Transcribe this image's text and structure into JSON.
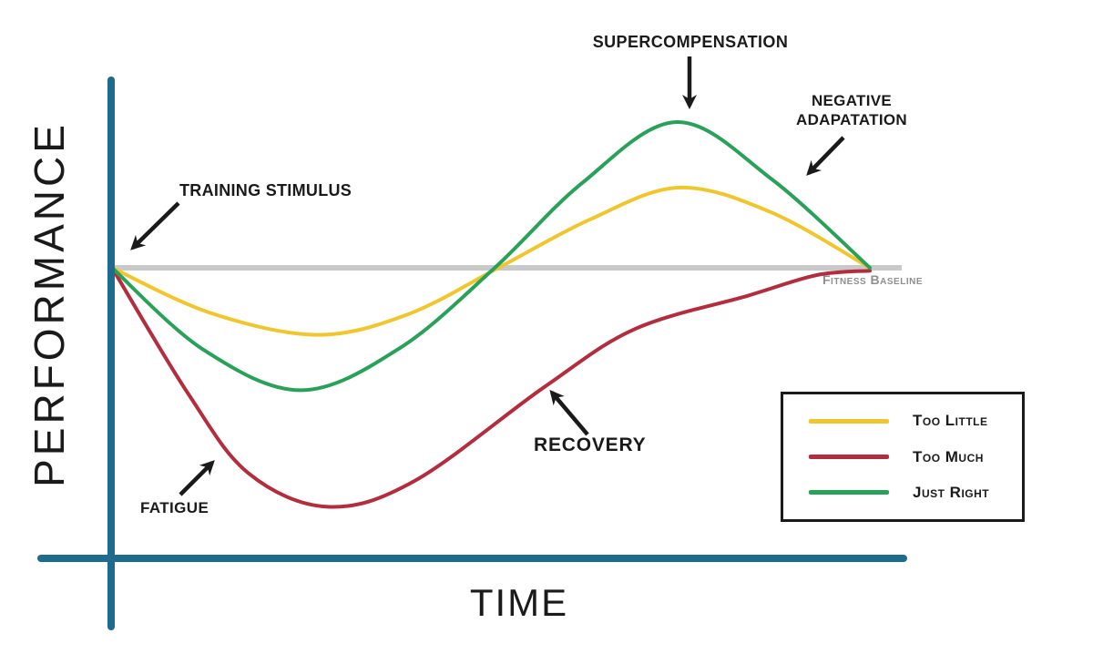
{
  "page": {
    "background": "#ffffff"
  },
  "colors": {
    "axis": "#1e6b8e",
    "baseline": "#c9c9c9",
    "arrow": "#1a1a1a",
    "label_text": "#1a1a1a",
    "baseline_text": "#8f8f8f"
  },
  "axes": {
    "x_label": "TIME",
    "y_label": "PERFORMANCE"
  },
  "annotations": {
    "training_stimulus": "TRAINING STIMULUS",
    "supercompensation": "SUPERCOMPENSATION",
    "negative_adaptation": "NEGATIVE\nADAPATATION",
    "fitness_baseline": "Fitness Baseline",
    "recovery": "RECOVERY",
    "fatigue": "FATIGUE"
  },
  "legend": {
    "items": [
      {
        "label": "Too Little",
        "color": "#f0c62e"
      },
      {
        "label": "Too Much",
        "color": "#b22e3e"
      },
      {
        "label": "Just Right",
        "color": "#2aa15a"
      }
    ]
  },
  "chart_data": {
    "type": "line",
    "title": "Supercompensation / training adaptation curves",
    "xlabel": "TIME",
    "ylabel": "PERFORMANCE",
    "x_range": [
      0,
      100
    ],
    "y_range": [
      -180,
      120
    ],
    "grid": false,
    "legend_position": "lower-right",
    "baseline": {
      "value": 0,
      "label": "Fitness Baseline",
      "color": "#c9c9c9"
    },
    "annotations": [
      {
        "text": "TRAINING STIMULUS",
        "points_to": {
          "x": 0,
          "y": 0
        }
      },
      {
        "text": "FATIGUE",
        "points_to": {
          "x": 16,
          "y": -132
        }
      },
      {
        "text": "RECOVERY",
        "points_to": {
          "x": 57,
          "y": -82
        }
      },
      {
        "text": "SUPERCOMPENSATION",
        "points_to": {
          "x": 74.5,
          "y": 100
        }
      },
      {
        "text": "NEGATIVE ADAPATATION",
        "points_to": {
          "x": 91,
          "y": 61
        }
      }
    ],
    "series": [
      {
        "name": "TOO LITTLE",
        "color": "#f0c62e",
        "points": [
          [
            0,
            0
          ],
          [
            13,
            -31
          ],
          [
            27,
            -46
          ],
          [
            39,
            -32
          ],
          [
            51,
            0
          ],
          [
            63,
            33
          ],
          [
            74.8,
            55
          ],
          [
            87,
            38
          ],
          [
            100,
            0
          ]
        ]
      },
      {
        "name": "TOO MUCH",
        "color": "#b22e3e",
        "points": [
          [
            0,
            0
          ],
          [
            10,
            -86
          ],
          [
            18,
            -141
          ],
          [
            28.5,
            -164
          ],
          [
            40,
            -146
          ],
          [
            57,
            -82
          ],
          [
            69,
            -42
          ],
          [
            84,
            -19
          ],
          [
            93,
            -5
          ],
          [
            100,
            -2
          ]
        ]
      },
      {
        "name": "JUST RIGHT",
        "color": "#2aa15a",
        "points": [
          [
            0,
            0
          ],
          [
            12,
            -56
          ],
          [
            25,
            -84
          ],
          [
            38,
            -55
          ],
          [
            50.5,
            0
          ],
          [
            62,
            58
          ],
          [
            74.5,
            100
          ],
          [
            87,
            61
          ],
          [
            100,
            0
          ]
        ]
      }
    ]
  }
}
